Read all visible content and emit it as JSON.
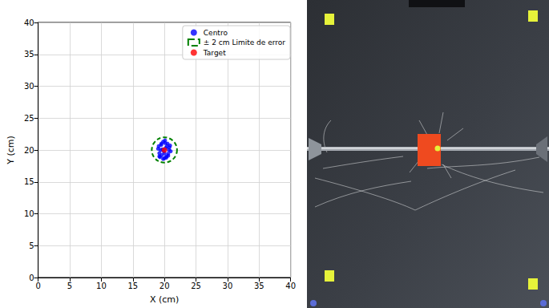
{
  "chart_data": {
    "type": "scatter",
    "x_label": "X (cm)",
    "y_label": "Y (cm)",
    "xlim": [
      0,
      40
    ],
    "ylim": [
      0,
      40
    ],
    "xticks": [
      0,
      5,
      10,
      15,
      20,
      25,
      30,
      35,
      40
    ],
    "yticks": [
      0,
      5,
      10,
      15,
      20,
      25,
      30,
      35,
      40
    ],
    "grid": true,
    "legend": "upper right",
    "series": [
      {
        "name": "Centro",
        "type": "scatter",
        "color": "#0000ff",
        "marker": "circle",
        "x": [
          19.0,
          19.2,
          19.5,
          19.8,
          20.1,
          20.4,
          20.7,
          21.0,
          19.3,
          19.6,
          20.0,
          20.3,
          20.6,
          19.1,
          19.4,
          19.9,
          20.2,
          20.5,
          20.8,
          19.7,
          20.0,
          20.3,
          19.5,
          20.6,
          20.1,
          19.8,
          19.2,
          20.9
        ],
        "values": [
          20.2,
          19.5,
          20.8,
          21.3,
          21.1,
          20.6,
          20.0,
          19.8,
          18.9,
          19.2,
          18.7,
          19.0,
          19.4,
          20.6,
          20.0,
          19.8,
          20.3,
          21.0,
          20.4,
          20.1,
          19.5,
          18.8,
          21.0,
          19.1,
          21.5,
          18.6,
          19.0,
          20.7
        ]
      },
      {
        "name": "± 2 cm Limite de error",
        "type": "circle",
        "color": "#008000",
        "line_style": "dashed",
        "center": [
          20,
          20
        ],
        "radius": 2
      },
      {
        "name": "Target",
        "type": "scatter",
        "color": "#ff0000",
        "marker": "circle",
        "x": [
          20
        ],
        "values": [
          20
        ]
      }
    ]
  }
}
